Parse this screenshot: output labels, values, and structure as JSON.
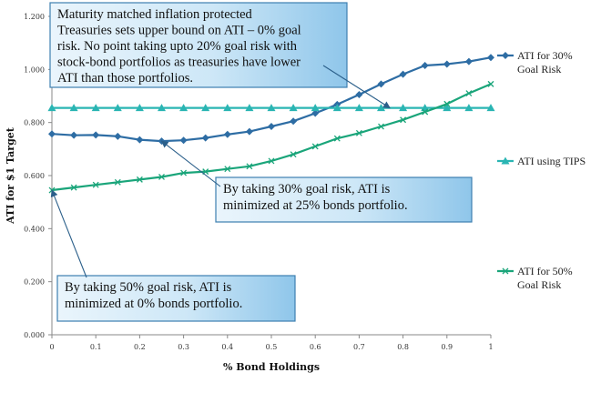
{
  "chart_data": {
    "type": "line",
    "xlabel": "% Bond Holdings",
    "ylabel": "ATI for $1 Target",
    "xlim": [
      0,
      1
    ],
    "ylim": [
      0,
      1.2
    ],
    "x_ticks": [
      "0",
      "0.1",
      "0.2",
      "0.3",
      "0.4",
      "0.5",
      "0.6",
      "0.7",
      "0.8",
      "0.9",
      "1"
    ],
    "y_ticks": [
      "0.000",
      "0.200",
      "0.400",
      "0.600",
      "0.800",
      "1.000",
      "1.200"
    ],
    "grid": false,
    "x": [
      0,
      0.05,
      0.1,
      0.15,
      0.2,
      0.25,
      0.3,
      0.35,
      0.4,
      0.45,
      0.5,
      0.55,
      0.6,
      0.65,
      0.7,
      0.75,
      0.8,
      0.85,
      0.9,
      0.95,
      1
    ],
    "series": [
      {
        "name": "ATI for 30% Goal Risk",
        "color": "#2e6da4",
        "marker": "diamond",
        "values": [
          0.757,
          0.752,
          0.753,
          0.748,
          0.735,
          0.73,
          0.733,
          0.742,
          0.755,
          0.766,
          0.785,
          0.805,
          0.835,
          0.868,
          0.905,
          0.945,
          0.982,
          1.015,
          1.02,
          1.03,
          1.045
        ]
      },
      {
        "name": "ATI using TIPS",
        "color": "#2ab5b3",
        "marker": "triangle",
        "values": [
          0.855,
          0.855,
          0.855,
          0.855,
          0.855,
          0.855,
          0.855,
          0.855,
          0.855,
          0.855,
          0.855,
          0.855,
          0.855,
          0.855,
          0.855,
          0.855,
          0.855,
          0.855,
          0.855,
          0.855,
          0.855
        ]
      },
      {
        "name": "ATI for 50% Goal Risk",
        "color": "#1aa57a",
        "marker": "x",
        "values": [
          0.545,
          0.555,
          0.565,
          0.575,
          0.585,
          0.595,
          0.61,
          0.615,
          0.625,
          0.635,
          0.655,
          0.68,
          0.71,
          0.74,
          0.76,
          0.785,
          0.81,
          0.84,
          0.87,
          0.91,
          0.945
        ]
      }
    ],
    "legend": [
      {
        "lines": [
          "ATI for 30%",
          "Goal Risk"
        ],
        "color": "#2e6da4",
        "marker": "diamond"
      },
      {
        "lines": [
          "ATI using TIPS"
        ],
        "color": "#2ab5b3",
        "marker": "triangle"
      },
      {
        "lines": [
          "ATI for 50%",
          "Goal Risk"
        ],
        "color": "#1aa57a",
        "marker": "x"
      }
    ],
    "annotations": [
      {
        "lines": [
          "Maturity matched inflation protected",
          "Treasuries sets upper bound on ATI – 0% goal",
          "risk. No point taking upto 20% goal risk with",
          "stock-bond portfolios as treasuries have lower",
          "ATI than those portfolios."
        ],
        "arrow_to": [
          0.77,
          0.855
        ]
      },
      {
        "lines": [
          "By taking 30% goal risk, ATI is",
          "minimized at 25% bonds portfolio."
        ],
        "arrow_to": [
          0.25,
          0.73
        ]
      },
      {
        "lines": [
          "By taking 50% goal risk, ATI is",
          "minimized at 0% bonds portfolio."
        ],
        "arrow_to": [
          0.0,
          0.545
        ]
      }
    ]
  }
}
